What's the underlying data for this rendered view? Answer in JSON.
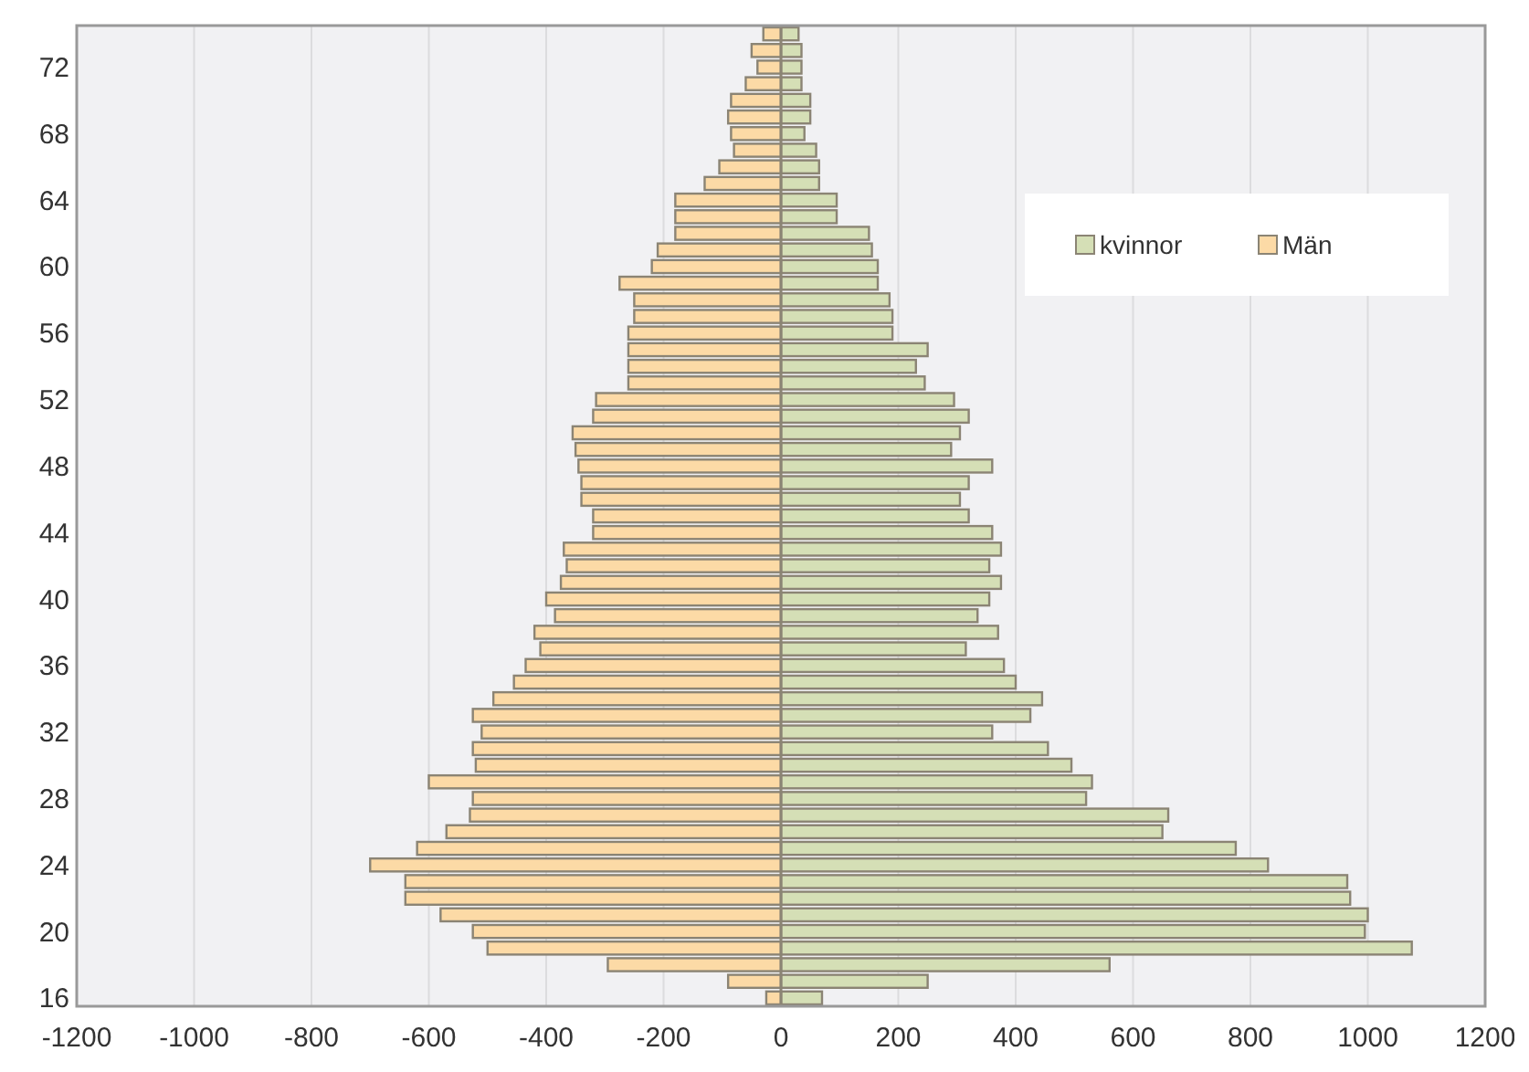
{
  "chart_data": {
    "type": "bar",
    "orientation": "horizontal",
    "stacked": true,
    "categories": [
      null,
      null,
      "72",
      null,
      null,
      null,
      "68",
      null,
      null,
      null,
      "64",
      null,
      null,
      null,
      "60",
      null,
      null,
      null,
      "56",
      null,
      null,
      null,
      "52",
      null,
      null,
      null,
      "48",
      null,
      null,
      null,
      "44",
      null,
      null,
      null,
      "40",
      null,
      null,
      null,
      "36",
      null,
      null,
      null,
      "32",
      null,
      null,
      null,
      "28",
      null,
      null,
      null,
      "24",
      null,
      null,
      null,
      "20",
      null,
      null,
      null,
      "16"
    ],
    "series": [
      {
        "name": "kvinnor",
        "color": "#d5dfb6",
        "values": [
          30,
          35,
          35,
          35,
          50,
          50,
          40,
          60,
          65,
          65,
          95,
          95,
          150,
          155,
          165,
          165,
          185,
          190,
          190,
          250,
          230,
          245,
          295,
          320,
          305,
          290,
          360,
          320,
          305,
          320,
          360,
          375,
          355,
          375,
          355,
          335,
          370,
          315,
          380,
          400,
          445,
          425,
          360,
          455,
          495,
          530,
          520,
          660,
          650,
          775,
          830,
          965,
          970,
          1000,
          995,
          1075,
          560,
          250,
          70
        ]
      },
      {
        "name": "Män",
        "color": "#fcdaa6",
        "values": [
          -30,
          -50,
          -40,
          -60,
          -85,
          -90,
          -85,
          -80,
          -105,
          -130,
          -180,
          -180,
          -180,
          -210,
          -220,
          -275,
          -250,
          -250,
          -260,
          -260,
          -260,
          -260,
          -315,
          -320,
          -355,
          -350,
          -345,
          -340,
          -340,
          -320,
          -320,
          -370,
          -365,
          -375,
          -400,
          -385,
          -420,
          -410,
          -435,
          -455,
          -490,
          -525,
          -510,
          -525,
          -520,
          -600,
          -525,
          -530,
          -570,
          -620,
          -700,
          -640,
          -640,
          -580,
          -525,
          -500,
          -295,
          -90,
          -25
        ]
      }
    ],
    "xlim": [
      -1200,
      1200
    ],
    "xticks": [
      -1200,
      -1000,
      -800,
      -600,
      -400,
      -200,
      0,
      200,
      400,
      600,
      800,
      1000,
      1200
    ],
    "grid": "x",
    "legend": "top right"
  }
}
